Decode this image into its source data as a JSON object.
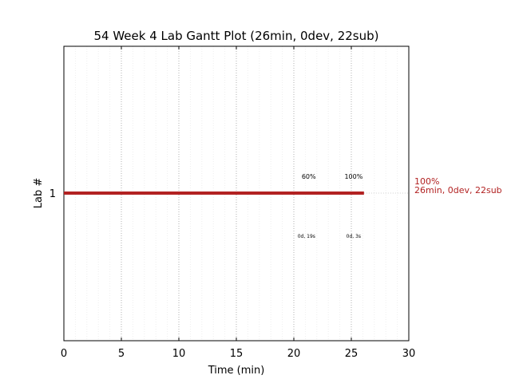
{
  "chart_data": {
    "type": "bar",
    "title": "54 Week 4 Lab Gantt Plot (26min, 0dev, 22sub)",
    "xlabel": "Time (min)",
    "ylabel": "Lab #",
    "xlim": [
      0,
      30
    ],
    "x_ticks": [
      "0",
      "5",
      "10",
      "15",
      "20",
      "25",
      "30"
    ],
    "x_tick_values": [
      0,
      5,
      10,
      15,
      20,
      25,
      30
    ],
    "minor_step": 1,
    "grid": true,
    "categories": [
      "1"
    ],
    "series": [
      {
        "values": [
          26.1
        ],
        "color": "#b22222"
      }
    ],
    "annotations": [
      {
        "x": 21.3,
        "text": "60%",
        "kind": "progress"
      },
      {
        "x": 25.2,
        "text": "100%",
        "kind": "progress"
      },
      {
        "x": 21.1,
        "text": "0d, 19s",
        "kind": "gap"
      },
      {
        "x": 25.2,
        "text": "0d, 3s",
        "kind": "gap"
      }
    ],
    "side_label": {
      "line1": "100%",
      "line2": "26min, 0dev, 22sub",
      "color": "#b22222"
    }
  }
}
